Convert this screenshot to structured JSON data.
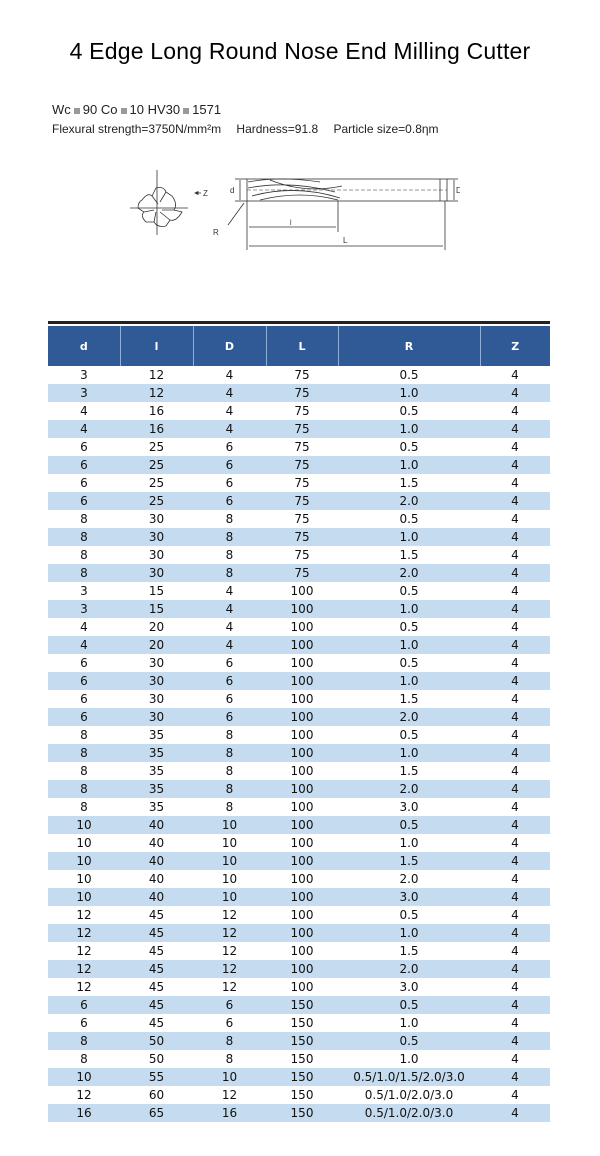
{
  "title": "4 Edge Long Round Nose End Milling Cutter",
  "composition": {
    "wc_label": "Wc",
    "wc": "90",
    "co_label": "Co",
    "co": "10",
    "hv_label": "HV30",
    "hv": "1571"
  },
  "properties": {
    "flexural": "Flexural strength=3750N/mm²m",
    "hardness": "Hardness=91.8",
    "particle": "Particle size=0.8ηm"
  },
  "diagram_labels": {
    "z": "Z",
    "d": "d",
    "D": "D",
    "R": "R",
    "l": "l",
    "L": "L"
  },
  "table": {
    "headers": [
      "d",
      "l",
      "D",
      "L",
      "R",
      "Z"
    ],
    "rows": [
      [
        "3",
        "12",
        "4",
        "75",
        "0.5",
        "4"
      ],
      [
        "3",
        "12",
        "4",
        "75",
        "1.0",
        "4"
      ],
      [
        "4",
        "16",
        "4",
        "75",
        "0.5",
        "4"
      ],
      [
        "4",
        "16",
        "4",
        "75",
        "1.0",
        "4"
      ],
      [
        "6",
        "25",
        "6",
        "75",
        "0.5",
        "4"
      ],
      [
        "6",
        "25",
        "6",
        "75",
        "1.0",
        "4"
      ],
      [
        "6",
        "25",
        "6",
        "75",
        "1.5",
        "4"
      ],
      [
        "6",
        "25",
        "6",
        "75",
        "2.0",
        "4"
      ],
      [
        "8",
        "30",
        "8",
        "75",
        "0.5",
        "4"
      ],
      [
        "8",
        "30",
        "8",
        "75",
        "1.0",
        "4"
      ],
      [
        "8",
        "30",
        "8",
        "75",
        "1.5",
        "4"
      ],
      [
        "8",
        "30",
        "8",
        "75",
        "2.0",
        "4"
      ],
      [
        "3",
        "15",
        "4",
        "100",
        "0.5",
        "4"
      ],
      [
        "3",
        "15",
        "4",
        "100",
        "1.0",
        "4"
      ],
      [
        "4",
        "20",
        "4",
        "100",
        "0.5",
        "4"
      ],
      [
        "4",
        "20",
        "4",
        "100",
        "1.0",
        "4"
      ],
      [
        "6",
        "30",
        "6",
        "100",
        "0.5",
        "4"
      ],
      [
        "6",
        "30",
        "6",
        "100",
        "1.0",
        "4"
      ],
      [
        "6",
        "30",
        "6",
        "100",
        "1.5",
        "4"
      ],
      [
        "6",
        "30",
        "6",
        "100",
        "2.0",
        "4"
      ],
      [
        "8",
        "35",
        "8",
        "100",
        "0.5",
        "4"
      ],
      [
        "8",
        "35",
        "8",
        "100",
        "1.0",
        "4"
      ],
      [
        "8",
        "35",
        "8",
        "100",
        "1.5",
        "4"
      ],
      [
        "8",
        "35",
        "8",
        "100",
        "2.0",
        "4"
      ],
      [
        "8",
        "35",
        "8",
        "100",
        "3.0",
        "4"
      ],
      [
        "10",
        "40",
        "10",
        "100",
        "0.5",
        "4"
      ],
      [
        "10",
        "40",
        "10",
        "100",
        "1.0",
        "4"
      ],
      [
        "10",
        "40",
        "10",
        "100",
        "1.5",
        "4"
      ],
      [
        "10",
        "40",
        "10",
        "100",
        "2.0",
        "4"
      ],
      [
        "10",
        "40",
        "10",
        "100",
        "3.0",
        "4"
      ],
      [
        "12",
        "45",
        "12",
        "100",
        "0.5",
        "4"
      ],
      [
        "12",
        "45",
        "12",
        "100",
        "1.0",
        "4"
      ],
      [
        "12",
        "45",
        "12",
        "100",
        "1.5",
        "4"
      ],
      [
        "12",
        "45",
        "12",
        "100",
        "2.0",
        "4"
      ],
      [
        "12",
        "45",
        "12",
        "100",
        "3.0",
        "4"
      ],
      [
        "6",
        "45",
        "6",
        "150",
        "0.5",
        "4"
      ],
      [
        "6",
        "45",
        "6",
        "150",
        "1.0",
        "4"
      ],
      [
        "8",
        "50",
        "8",
        "150",
        "0.5",
        "4"
      ],
      [
        "8",
        "50",
        "8",
        "150",
        "1.0",
        "4"
      ],
      [
        "10",
        "55",
        "10",
        "150",
        "0.5/1.0/1.5/2.0/3.0",
        "4"
      ],
      [
        "12",
        "60",
        "12",
        "150",
        "0.5/1.0/2.0/3.0",
        "4"
      ],
      [
        "16",
        "65",
        "16",
        "150",
        "0.5/1.0/2.0/3.0",
        "4"
      ]
    ]
  },
  "colors": {
    "header_bg": "#2f5a96",
    "alt_row": "#c5dcf0"
  }
}
